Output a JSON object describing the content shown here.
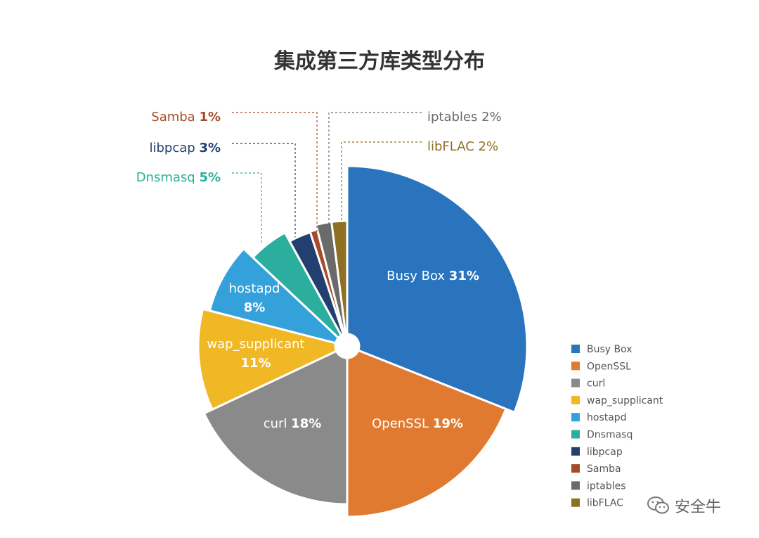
{
  "chart_data": {
    "type": "pie",
    "title": "集成第三方库类型分布",
    "slices": [
      {
        "label": "Busy Box",
        "value": 31,
        "pct_label": "31%",
        "color": "#2a74bd"
      },
      {
        "label": "OpenSSL",
        "value": 19,
        "pct_label": "19%",
        "color": "#e07a30"
      },
      {
        "label": "curl",
        "value": 18,
        "pct_label": "18%",
        "color": "#8a8a8a"
      },
      {
        "label": "wap_supplicant",
        "value": 11,
        "pct_label": "11%",
        "color": "#f0b825"
      },
      {
        "label": "hostapd",
        "value": 8,
        "pct_label": "8%",
        "color": "#35a1db"
      },
      {
        "label": "Dnsmasq",
        "value": 5,
        "pct_label": "5%",
        "color": "#2bae9e"
      },
      {
        "label": "libpcap",
        "value": 3,
        "pct_label": "3%",
        "color": "#223f70"
      },
      {
        "label": "Samba",
        "value": 1,
        "pct_label": "1%",
        "color": "#a64b2a"
      },
      {
        "label": "iptables",
        "value": 2,
        "pct_label": "2%",
        "color": "#6a6a6a"
      },
      {
        "label": "libFLAC",
        "value": 2,
        "pct_label": "2%",
        "color": "#8f6f22"
      }
    ],
    "legend_position": "bottom-right"
  },
  "watermark": {
    "text": "安全牛",
    "icon": "wechat-icon"
  }
}
